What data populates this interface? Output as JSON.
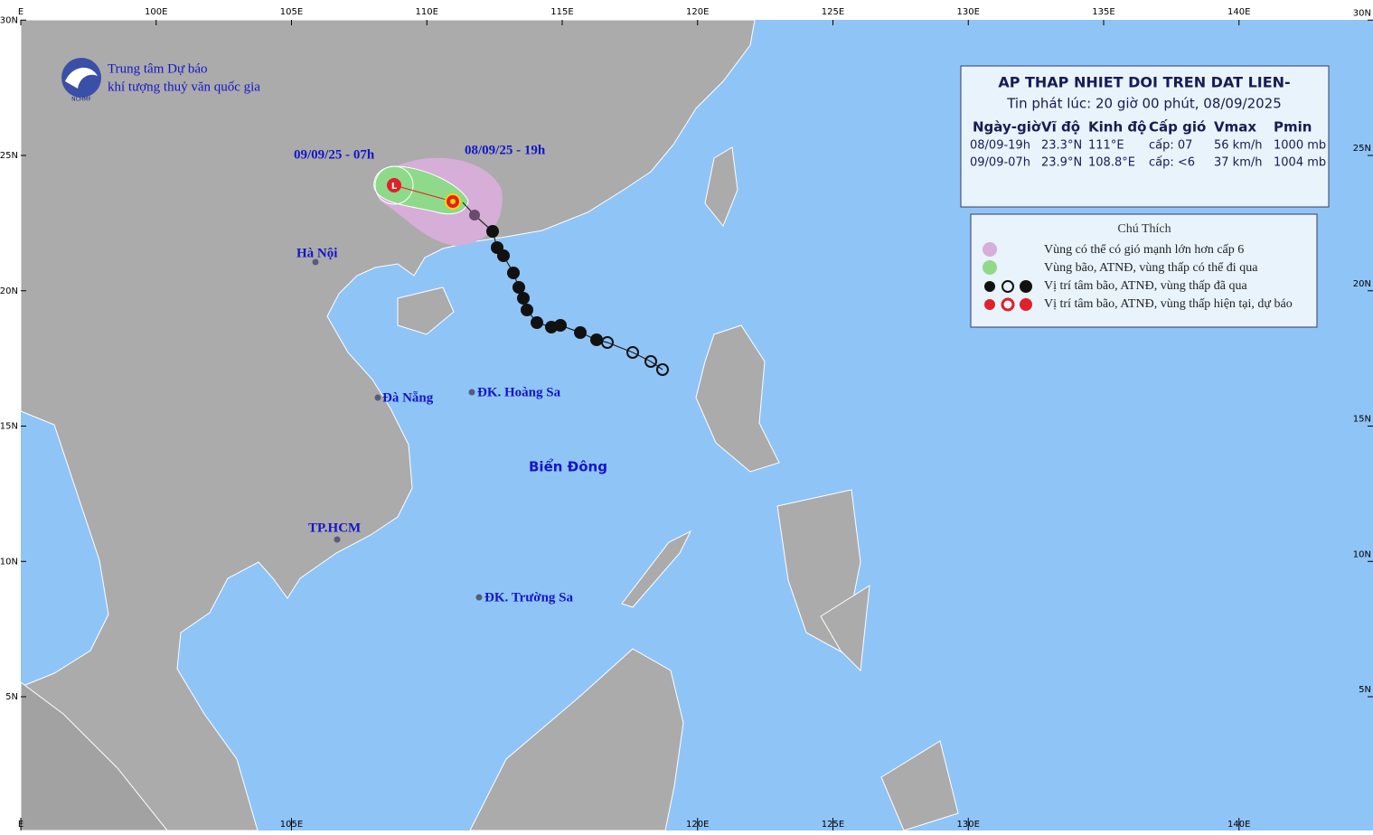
{
  "header": {
    "org_line1": "Trung tâm Dự báo",
    "org_line2": "khí tượng thuỷ văn quốc gia",
    "logo_text": "NCHMF"
  },
  "axes": {
    "lon_ticks_top": [
      {
        "value": 95,
        "label": "E"
      },
      {
        "value": 100,
        "label": "100E"
      },
      {
        "value": 105,
        "label": "105E"
      },
      {
        "value": 110,
        "label": "110E"
      },
      {
        "value": 115,
        "label": "115E"
      },
      {
        "value": 120,
        "label": "120E"
      },
      {
        "value": 125,
        "label": "125E"
      },
      {
        "value": 130,
        "label": "130E"
      },
      {
        "value": 135,
        "label": "135E"
      },
      {
        "value": 140,
        "label": "140E"
      }
    ],
    "lon_ticks_bottom": [
      {
        "value": 95,
        "label": "E"
      },
      {
        "value": 105,
        "label": "105E"
      },
      {
        "value": 120,
        "label": "120E"
      },
      {
        "value": 125,
        "label": "125E"
      },
      {
        "value": 130,
        "label": "130E"
      },
      {
        "value": 140,
        "label": "140E"
      }
    ],
    "lat_ticks": [
      {
        "value": 30,
        "label": "30N"
      },
      {
        "value": 25,
        "label": "25N"
      },
      {
        "value": 20,
        "label": "20N"
      },
      {
        "value": 15,
        "label": "15N"
      },
      {
        "value": 10,
        "label": "10N"
      },
      {
        "value": 5,
        "label": "5N"
      }
    ]
  },
  "places": {
    "hanoi": "Hà Nội",
    "danang": "Đà Nẵng",
    "hoangsa": "ĐK. Hoàng Sa",
    "hcm": "TP.HCM",
    "truongsa": "ĐK. Trường Sa",
    "sea": "Biển Đông",
    "time_current": "08/09/25 - 19h",
    "time_forecast": "09/09/25 - 07h"
  },
  "info": {
    "title": "AP THAP NHIET DOI TREN DAT LIEN-",
    "issued": "Tin phát lúc: 20 giờ 00 phút, 08/09/2025",
    "headers": [
      "Ngày-giờ",
      "Vĩ độ",
      "Kinh độ",
      "Cấp gió",
      "Vmax",
      "Pmin"
    ],
    "rows": [
      [
        "08/09-19h",
        "23.3°N",
        "111°E",
        "cấp: 07",
        "56 km/h",
        "1000 mb"
      ],
      [
        "09/09-07h",
        "23.9°N",
        "108.8°E",
        "cấp: <6",
        "37 km/h",
        "1004 mb"
      ]
    ]
  },
  "legend": {
    "title": "Chú Thích",
    "items": [
      "Vùng có thể có gió mạnh lớn hơn cấp 6",
      "Vùng bão, ATNĐ, vùng thấp có thể đi qua",
      "Vị trí tâm bão, ATNĐ, vùng thấp đã qua",
      "Vị trí tâm bão, ATNĐ, vùng thấp hiện tại, dự báo"
    ]
  }
}
